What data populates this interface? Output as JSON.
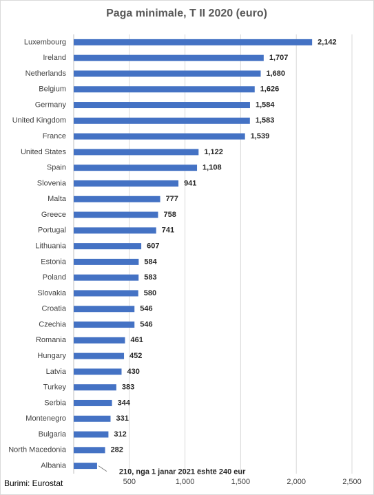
{
  "chart_data": {
    "type": "bar",
    "orientation": "horizontal",
    "title": "Paga minimale, T II 2020 (euro)",
    "categories": [
      "Luxembourg",
      "Ireland",
      "Netherlands",
      "Belgium",
      "Germany",
      "United Kingdom",
      "France",
      "United States",
      "Spain",
      "Slovenia",
      "Malta",
      "Greece",
      "Portugal",
      "Lithuania",
      "Estonia",
      "Poland",
      "Slovakia",
      "Croatia",
      "Czechia",
      "Romania",
      "Hungary",
      "Latvia",
      "Turkey",
      "Serbia",
      "Montenegro",
      "Bulgaria",
      "North Macedonia",
      "Albania"
    ],
    "values": [
      2142,
      1707,
      1680,
      1626,
      1584,
      1583,
      1539,
      1122,
      1108,
      941,
      777,
      758,
      741,
      607,
      584,
      583,
      580,
      546,
      546,
      461,
      452,
      430,
      383,
      344,
      331,
      312,
      282,
      210
    ],
    "value_labels": [
      "2,142",
      "1,707",
      "1,680",
      "1,626",
      "1,584",
      "1,583",
      "1,539",
      "1,122",
      "1,108",
      "941",
      "777",
      "758",
      "741",
      "607",
      "584",
      "583",
      "580",
      "546",
      "546",
      "461",
      "452",
      "430",
      "383",
      "344",
      "331",
      "312",
      "282",
      "210, nga 1 janar 2021 është 240 eur"
    ],
    "color": "#4472c4",
    "xlim": [
      0,
      2500
    ],
    "xticks": [
      500,
      {
        "value": 1000,
        "label": "1,000"
      },
      {
        "value": 1500,
        "label": "1,500"
      },
      {
        "value": 2000,
        "label": "2,000"
      },
      {
        "value": 2500,
        "label": "2,500"
      }
    ],
    "grid": true,
    "source": "Burimi: Eurostat"
  }
}
